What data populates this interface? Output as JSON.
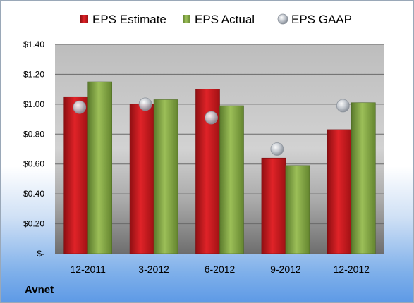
{
  "chart_data": {
    "type": "bar",
    "categories": [
      "12-2011",
      "3-2012",
      "6-2012",
      "9-2012",
      "12-2012"
    ],
    "series": [
      {
        "name": "EPS Estimate",
        "kind": "bar",
        "color": "#c8191c",
        "values": [
          1.05,
          1.0,
          1.1,
          0.64,
          0.83
        ]
      },
      {
        "name": "EPS Actual",
        "kind": "bar",
        "color": "#7fa040",
        "values": [
          1.15,
          1.03,
          0.99,
          0.59,
          1.01
        ]
      },
      {
        "name": "EPS GAAP",
        "kind": "marker",
        "color": "#b8bfc8",
        "values": [
          0.98,
          1.0,
          0.91,
          0.7,
          0.99
        ]
      }
    ],
    "ylim": [
      0,
      1.4
    ],
    "yticks": [
      0,
      0.2,
      0.4,
      0.6,
      0.8,
      1.0,
      1.2,
      1.4
    ],
    "ytick_labels": [
      "$-",
      "$0.20",
      "$0.40",
      "$0.60",
      "$0.80",
      "$1.00",
      "$1.20",
      "$1.40"
    ],
    "grid": true,
    "legend_position": "top"
  },
  "company": "Avnet"
}
